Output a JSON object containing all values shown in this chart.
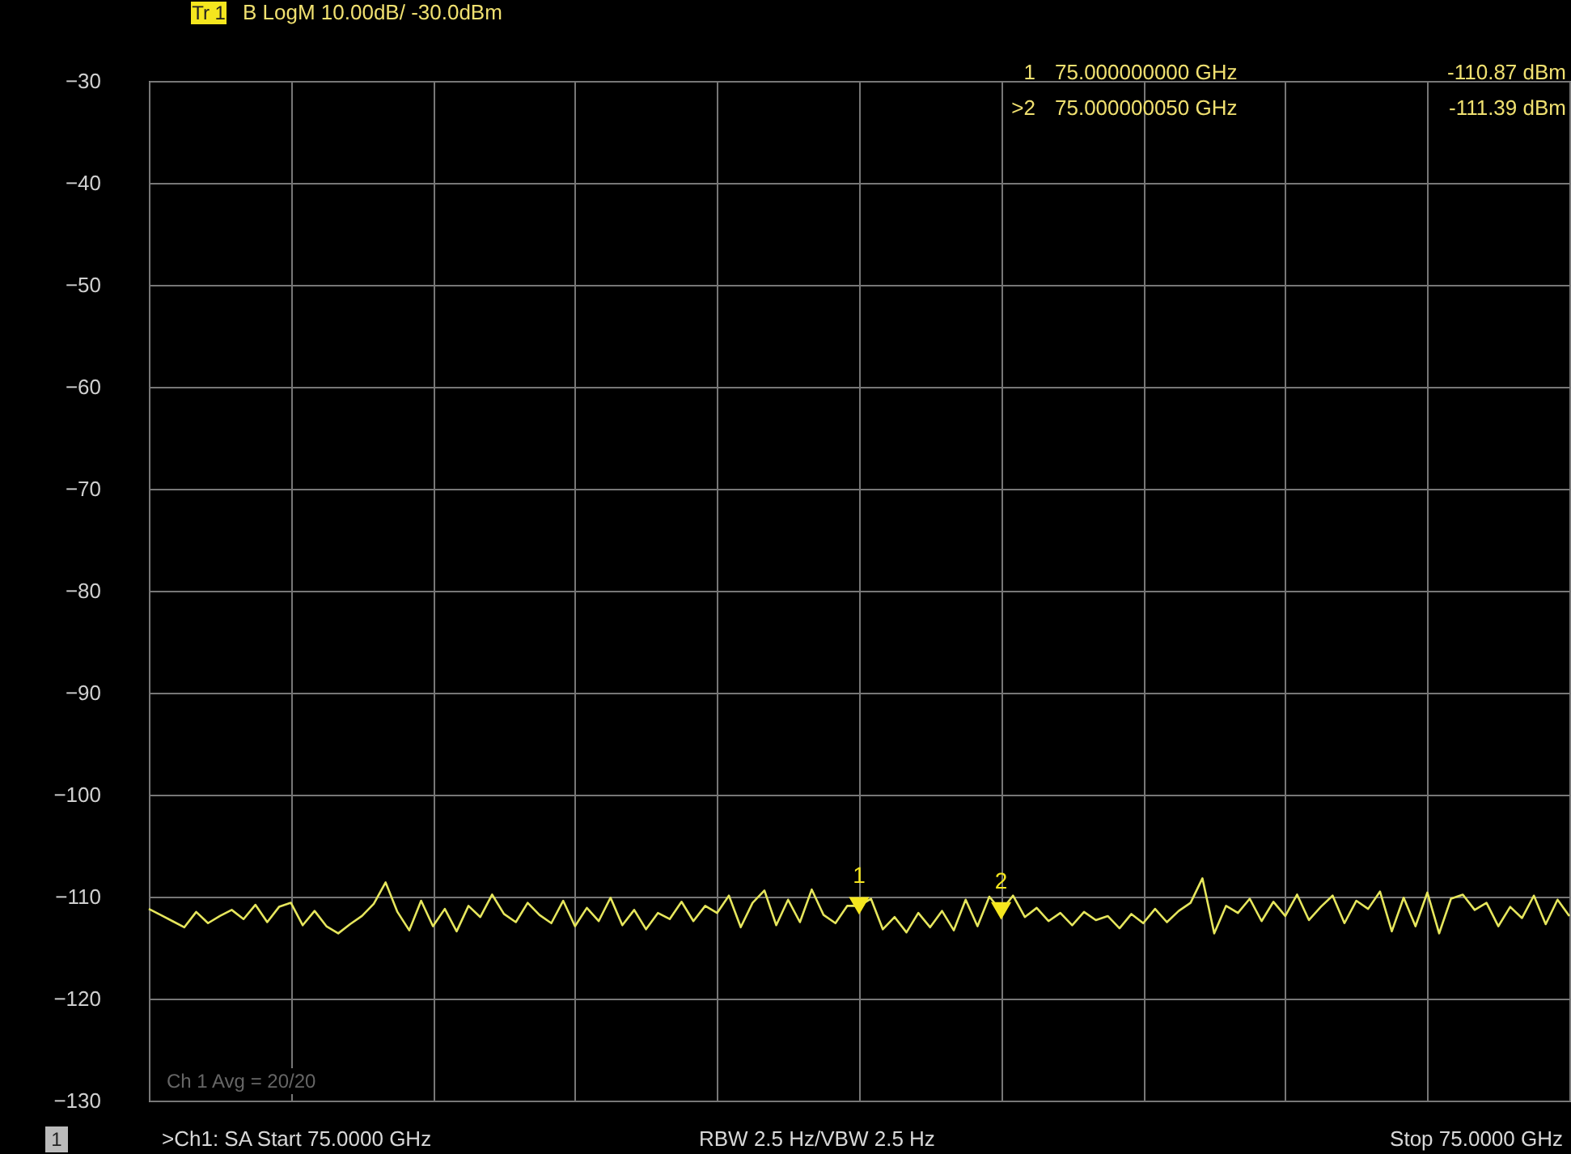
{
  "chart_data": {
    "type": "line",
    "title": "Tr 1",
    "subtitle": "B LogM 10.00dB/ -30.0dBm",
    "categories": [
      null,
      null,
      null,
      null,
      null,
      null,
      null,
      null,
      null,
      null,
      null,
      null,
      null,
      null,
      null,
      null,
      null,
      null,
      null,
      null,
      null,
      null,
      null,
      null,
      null,
      null,
      null,
      null,
      null,
      null,
      null,
      null,
      null,
      null,
      null,
      null,
      null,
      null,
      null,
      null,
      null,
      null,
      null,
      null,
      null,
      null,
      null,
      null,
      null,
      null,
      null,
      null,
      null,
      null,
      null,
      null,
      null,
      null,
      null,
      null,
      null,
      null,
      null,
      null,
      null,
      null,
      null,
      null,
      null,
      null,
      null,
      null,
      null,
      null,
      null,
      null,
      null,
      null,
      null,
      null,
      null,
      null,
      null,
      null,
      null,
      null,
      null,
      null,
      null,
      null,
      null,
      null,
      null,
      null,
      null,
      null,
      null,
      null,
      null,
      null,
      null,
      null,
      null,
      null,
      null,
      null,
      null,
      null,
      null,
      null,
      null,
      null,
      null,
      null,
      null,
      null,
      null,
      null,
      null,
      null,
      null
    ],
    "series": [
      {
        "color": "#e6e65c",
        "values": [
          -111.2,
          -111.8,
          -112.4,
          -113.0,
          -111.5,
          -112.6,
          -111.9,
          -111.3,
          -112.2,
          -110.8,
          -112.5,
          -111.0,
          -110.6,
          -112.8,
          -111.4,
          -112.9,
          -113.6,
          -112.7,
          -111.9,
          -110.7,
          -108.6,
          -111.5,
          -113.3,
          -110.4,
          -112.9,
          -111.2,
          -113.4,
          -110.9,
          -112.0,
          -109.8,
          -111.7,
          -112.5,
          -110.6,
          -111.8,
          -112.6,
          -110.4,
          -112.9,
          -111.1,
          -112.4,
          -110.1,
          -112.8,
          -111.3,
          -113.2,
          -111.6,
          -112.2,
          -110.5,
          -112.4,
          -110.9,
          -111.6,
          -109.9,
          -113.0,
          -110.6,
          -109.4,
          -112.8,
          -110.3,
          -112.5,
          -109.3,
          -111.8,
          -112.6,
          -110.9,
          -110.9,
          -110.2,
          -113.2,
          -112.0,
          -113.5,
          -111.6,
          -113.0,
          -111.4,
          -113.3,
          -110.3,
          -112.9,
          -110.0,
          -111.4,
          -109.9,
          -112.0,
          -111.1,
          -112.4,
          -111.6,
          -112.8,
          -111.5,
          -112.3,
          -111.9,
          -113.1,
          -111.7,
          -112.6,
          -111.2,
          -112.5,
          -111.4,
          -110.6,
          -108.2,
          -113.6,
          -110.9,
          -111.6,
          -110.2,
          -112.4,
          -110.5,
          -111.9,
          -109.8,
          -112.3,
          -111.0,
          -109.9,
          -112.6,
          -110.4,
          -111.2,
          -109.5,
          -113.4,
          -110.1,
          -112.9,
          -109.6,
          -113.6,
          -110.2,
          -109.8,
          -111.3,
          -110.6,
          -112.9,
          -111.0,
          -112.1,
          -109.9,
          -112.7,
          -110.3,
          -111.9
        ]
      },
      {
        "type": "scatter",
        "name": "1",
        "color": "#f5e61e",
        "marker": "triangle",
        "values": [
          null,
          null,
          null,
          null,
          null,
          null,
          null,
          null,
          null,
          null,
          null,
          null,
          null,
          null,
          null,
          null,
          null,
          null,
          null,
          null,
          null,
          null,
          null,
          null,
          null,
          null,
          null,
          null,
          null,
          null,
          null,
          null,
          null,
          null,
          null,
          null,
          null,
          null,
          null,
          null,
          null,
          null,
          null,
          null,
          null,
          null,
          null,
          null,
          null,
          null,
          null,
          null,
          null,
          null,
          null,
          null,
          null,
          null,
          null,
          null,
          -110.9,
          null,
          null,
          null,
          null,
          null,
          null,
          null,
          null,
          null,
          null,
          null,
          null,
          null,
          null,
          null,
          null,
          null,
          null,
          null,
          null,
          null,
          null,
          null,
          null,
          null,
          null,
          null,
          null,
          null,
          null,
          null,
          null,
          null,
          null,
          null,
          null,
          null,
          null,
          null,
          null,
          null,
          null,
          null,
          null,
          null,
          null,
          null,
          null,
          null,
          null,
          null,
          null,
          null,
          null,
          null,
          null,
          null,
          null,
          null,
          null
        ]
      },
      {
        "type": "scatter",
        "name": "2",
        "color": "#f5e61e",
        "marker": "triangle",
        "values": [
          null,
          null,
          null,
          null,
          null,
          null,
          null,
          null,
          null,
          null,
          null,
          null,
          null,
          null,
          null,
          null,
          null,
          null,
          null,
          null,
          null,
          null,
          null,
          null,
          null,
          null,
          null,
          null,
          null,
          null,
          null,
          null,
          null,
          null,
          null,
          null,
          null,
          null,
          null,
          null,
          null,
          null,
          null,
          null,
          null,
          null,
          null,
          null,
          null,
          null,
          null,
          null,
          null,
          null,
          null,
          null,
          null,
          null,
          null,
          null,
          null,
          null,
          null,
          null,
          null,
          null,
          null,
          null,
          null,
          null,
          null,
          null,
          -111.4,
          null,
          null,
          null,
          null,
          null,
          null,
          null,
          null,
          null,
          null,
          null,
          null,
          null,
          null,
          null,
          null,
          null,
          null,
          null,
          null,
          null,
          null,
          null,
          null,
          null,
          null,
          null,
          null,
          null,
          null,
          null,
          null,
          null,
          null,
          null,
          null,
          null,
          null,
          null,
          null,
          null,
          null,
          null,
          null,
          null,
          null,
          null,
          null
        ]
      }
    ],
    "ylim": [
      -130,
      -30
    ],
    "yticks": [
      -30,
      -40,
      -50,
      -60,
      -70,
      -80,
      -90,
      -100,
      -110,
      -120,
      -130
    ],
    "grid": true,
    "tick_labels": "y",
    "annotations": [
      "1",
      "75.000000000 GHz",
      "-110.87 dBm",
      ">2",
      "75.000000050 GHz",
      "-111.39 dBm",
      "1",
      ">Ch1: SA  Start 75.0000 GHz",
      "RBW 2.5 Hz/VBW 2.5 Hz",
      "Stop 75.0000 GHz",
      "Ch 1 Avg = 20/20"
    ]
  }
}
